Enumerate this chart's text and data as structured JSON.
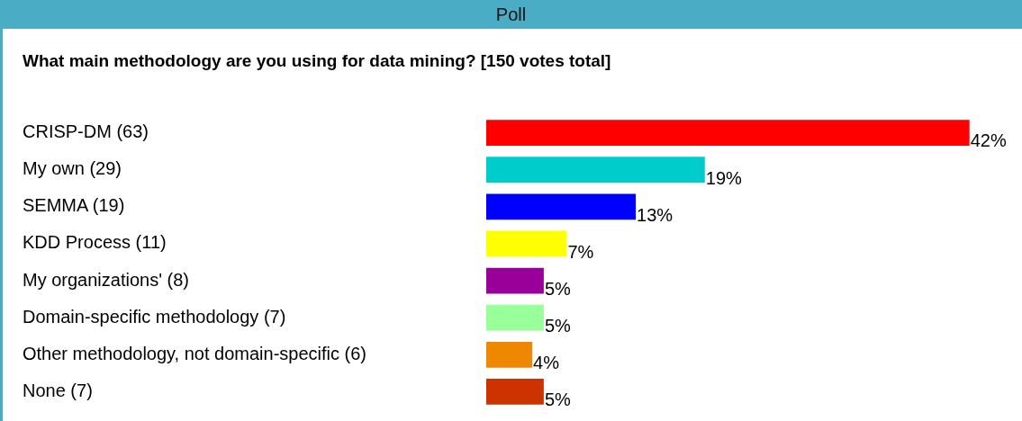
{
  "chart_data": {
    "type": "bar",
    "orientation": "horizontal",
    "title": "Poll",
    "subtitle": "What main methodology are you using for data mining? [150 votes total]",
    "categories": [
      "CRISP-DM (63)",
      "My own (29)",
      "SEMMA (19)",
      "KDD Process (11)",
      "My organizations' (8)",
      "Domain-specific methodology (7)",
      "Other methodology, not domain-specific (6)",
      "None (7)"
    ],
    "values": [
      42,
      19,
      13,
      7,
      5,
      5,
      4,
      5
    ],
    "colors": [
      "#ff0000",
      "#00cccc",
      "#0000ff",
      "#ffff00",
      "#990099",
      "#99ff99",
      "#ee8800",
      "#cc3300"
    ],
    "value_labels": [
      "42%",
      "19%",
      "13%",
      "7%",
      "5%",
      "5%",
      "4%",
      "5%"
    ],
    "grid": false,
    "legend": false
  }
}
